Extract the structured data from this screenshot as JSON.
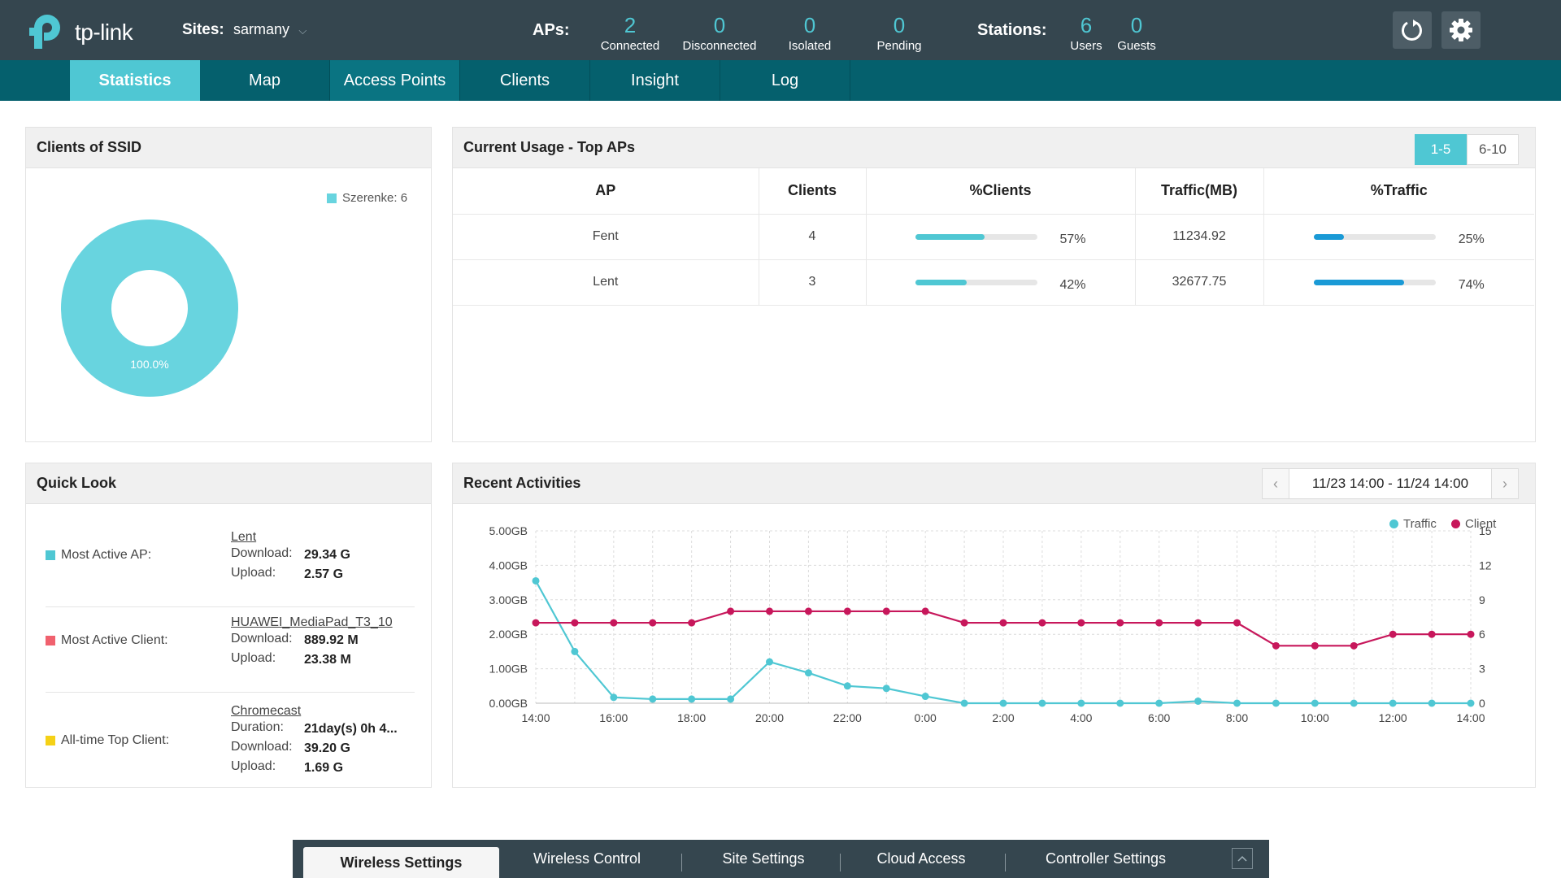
{
  "header": {
    "logo_text": "tp-link",
    "sites_label": "Sites:",
    "sites_value": "sarmany",
    "aps_label": "APs:",
    "ap_stats": [
      {
        "num": "2",
        "cap": "Connected"
      },
      {
        "num": "0",
        "cap": "Disconnected"
      },
      {
        "num": "0",
        "cap": "Isolated"
      },
      {
        "num": "0",
        "cap": "Pending"
      }
    ],
    "stations_label": "Stations:",
    "station_stats": [
      {
        "num": "6",
        "cap": "Users"
      },
      {
        "num": "0",
        "cap": "Guests"
      }
    ]
  },
  "nav": {
    "tabs": [
      "Statistics",
      "Map",
      "Access Points",
      "Clients",
      "Insight",
      "Log"
    ],
    "active": "Statistics"
  },
  "clients_ssid": {
    "title": "Clients of SSID",
    "legend": "Szerenke: 6",
    "slice_label": "100.0%",
    "color": "#68d4df"
  },
  "top_aps": {
    "title": "Current Usage - Top APs",
    "pager": [
      "1-5",
      "6-10"
    ],
    "columns": [
      "AP",
      "Clients",
      "%Clients",
      "Traffic(MB)",
      "%Traffic"
    ],
    "rows": [
      {
        "ap": "Fent",
        "clients": "4",
        "pct_clients": "57%",
        "pct_clients_val": 57,
        "traffic": "11234.92",
        "pct_traffic": "25%",
        "pct_traffic_val": 25
      },
      {
        "ap": "Lent",
        "clients": "3",
        "pct_clients": "42%",
        "pct_clients_val": 42,
        "traffic": "32677.75",
        "pct_traffic": "74%",
        "pct_traffic_val": 74
      }
    ]
  },
  "quick_look": {
    "title": "Quick Look",
    "sections": [
      {
        "label": "Most Active AP:",
        "color": "#4fc7d3",
        "name": "Lent",
        "kv": [
          [
            "Download:",
            "29.34 G"
          ],
          [
            "Upload:",
            "2.57 G"
          ]
        ]
      },
      {
        "label": "Most Active Client:",
        "color": "#f0616e",
        "name": "HUAWEI_MediaPad_T3_10",
        "kv": [
          [
            "Download:",
            "889.92 M"
          ],
          [
            "Upload:",
            "23.38 M"
          ]
        ]
      },
      {
        "label": "All-time Top Client:",
        "color": "#f5d116",
        "name": "Chromecast",
        "kv": [
          [
            "Duration:",
            "21day(s) 0h 4..."
          ],
          [
            "Download:",
            "39.20 G"
          ],
          [
            "Upload:",
            "1.69 G"
          ]
        ]
      }
    ]
  },
  "recent": {
    "title": "Recent Activities",
    "date_range": "11/23 14:00 - 11/24 14:00"
  },
  "chart_data": {
    "type": "line",
    "x_ticks": [
      "14:00",
      "16:00",
      "18:00",
      "20:00",
      "22:00",
      "0:00",
      "2:00",
      "4:00",
      "6:00",
      "8:00",
      "10:00",
      "12:00",
      "14:00"
    ],
    "y_left_ticks": [
      "0.00GB",
      "1.00GB",
      "2.00GB",
      "3.00GB",
      "4.00GB",
      "5.00GB"
    ],
    "y_right_ticks": [
      "0",
      "3",
      "6",
      "9",
      "12",
      "15"
    ],
    "ylim_left": [
      0,
      5
    ],
    "ylim_right": [
      0,
      15
    ],
    "grid": true,
    "legend_position": "top-right",
    "series": [
      {
        "name": "Traffic",
        "axis": "left",
        "color": "#4fc7d3",
        "values": [
          3.55,
          1.5,
          0.17,
          0.12,
          0.12,
          0.12,
          1.2,
          0.88,
          0.5,
          0.43,
          0.2,
          0.0,
          0.0,
          0.0,
          0.0,
          0.0,
          0.0,
          0.06,
          0.0,
          0.0,
          0.0,
          0.0,
          0.0,
          0.0,
          0.0
        ]
      },
      {
        "name": "Client",
        "axis": "right",
        "color": "#c7175b",
        "values": [
          7,
          7,
          7,
          7,
          7,
          8,
          8,
          8,
          8,
          8,
          8,
          7,
          7,
          7,
          7,
          7,
          7,
          7,
          7,
          5,
          5,
          5,
          6,
          6,
          6
        ]
      }
    ]
  },
  "bottom": {
    "tabs": [
      "Wireless Settings",
      "Wireless Control",
      "Site Settings",
      "Cloud Access",
      "Controller Settings"
    ],
    "active": "Wireless Settings"
  }
}
